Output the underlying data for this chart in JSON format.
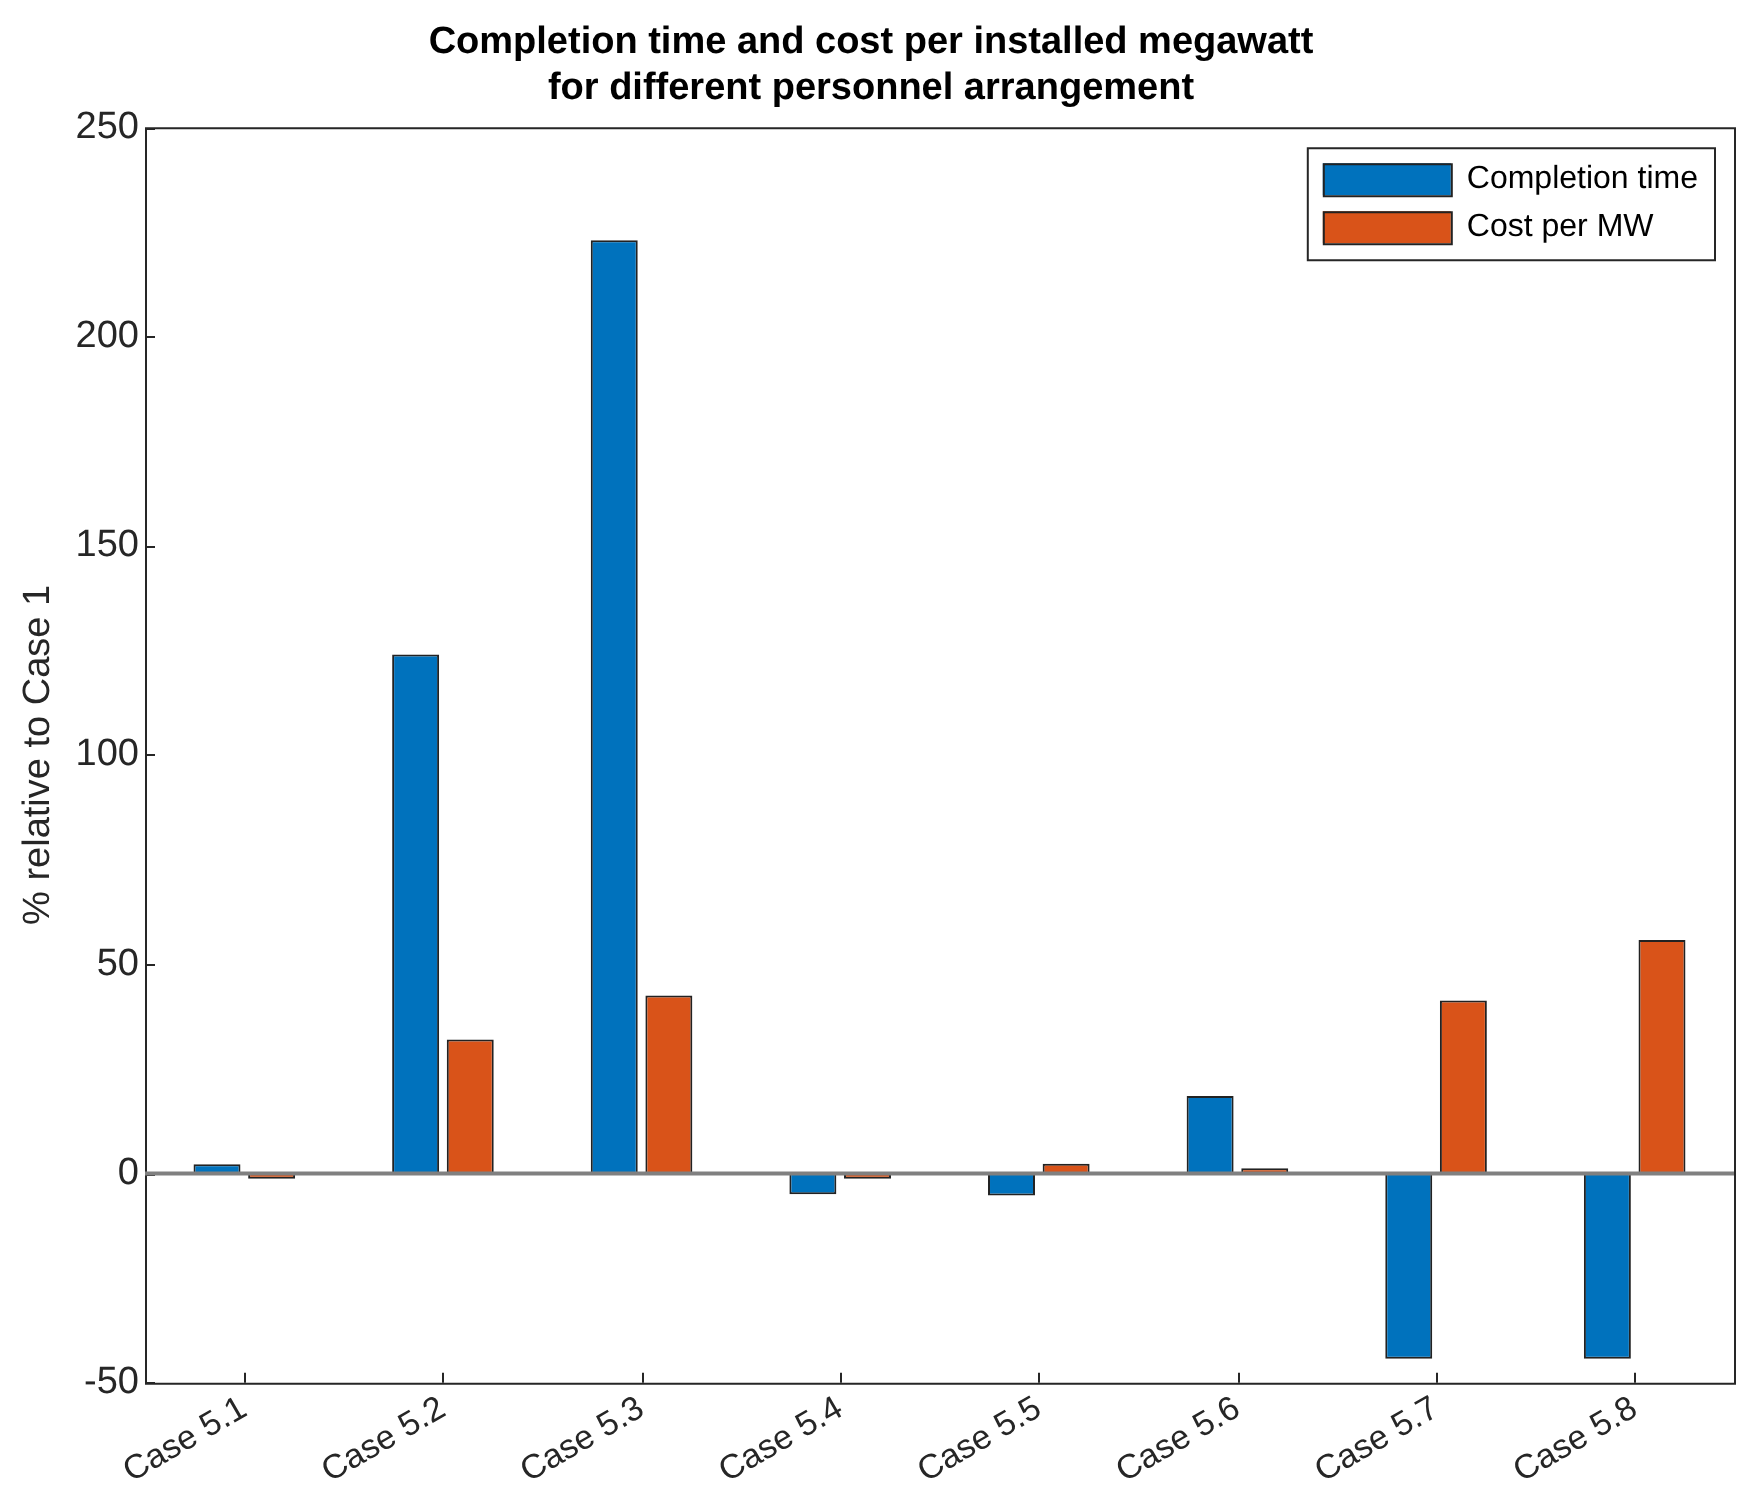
{
  "chart_data": {
    "type": "bar",
    "title": "Completion time and cost per installed megawatt for different personnel arrangement",
    "ylabel": "% relative to Case 1",
    "categories": [
      "Case 5.1",
      "Case 5.2",
      "Case 5.3",
      "Case 5.4",
      "Case 5.5",
      "Case 5.6",
      "Case 5.7",
      "Case 5.8"
    ],
    "series": [
      {
        "name": "Completion time",
        "color": "#0072bd",
        "values": [
          2.2,
          124,
          223,
          -5,
          -5.3,
          18.5,
          -44.3,
          -44.3
        ]
      },
      {
        "name": "Cost per MW",
        "color": "#d95319",
        "values": [
          -1.3,
          32,
          42.5,
          -1.3,
          2.3,
          1.2,
          41.3,
          55.8
        ]
      }
    ],
    "ref_lines": [
      {
        "axis": "y",
        "value": 0,
        "color": "#808080"
      }
    ],
    "ylim": [
      -50,
      250
    ],
    "yticks": [
      -50,
      0,
      50,
      100,
      150,
      200,
      250
    ],
    "grid": false,
    "legend": "top right"
  }
}
